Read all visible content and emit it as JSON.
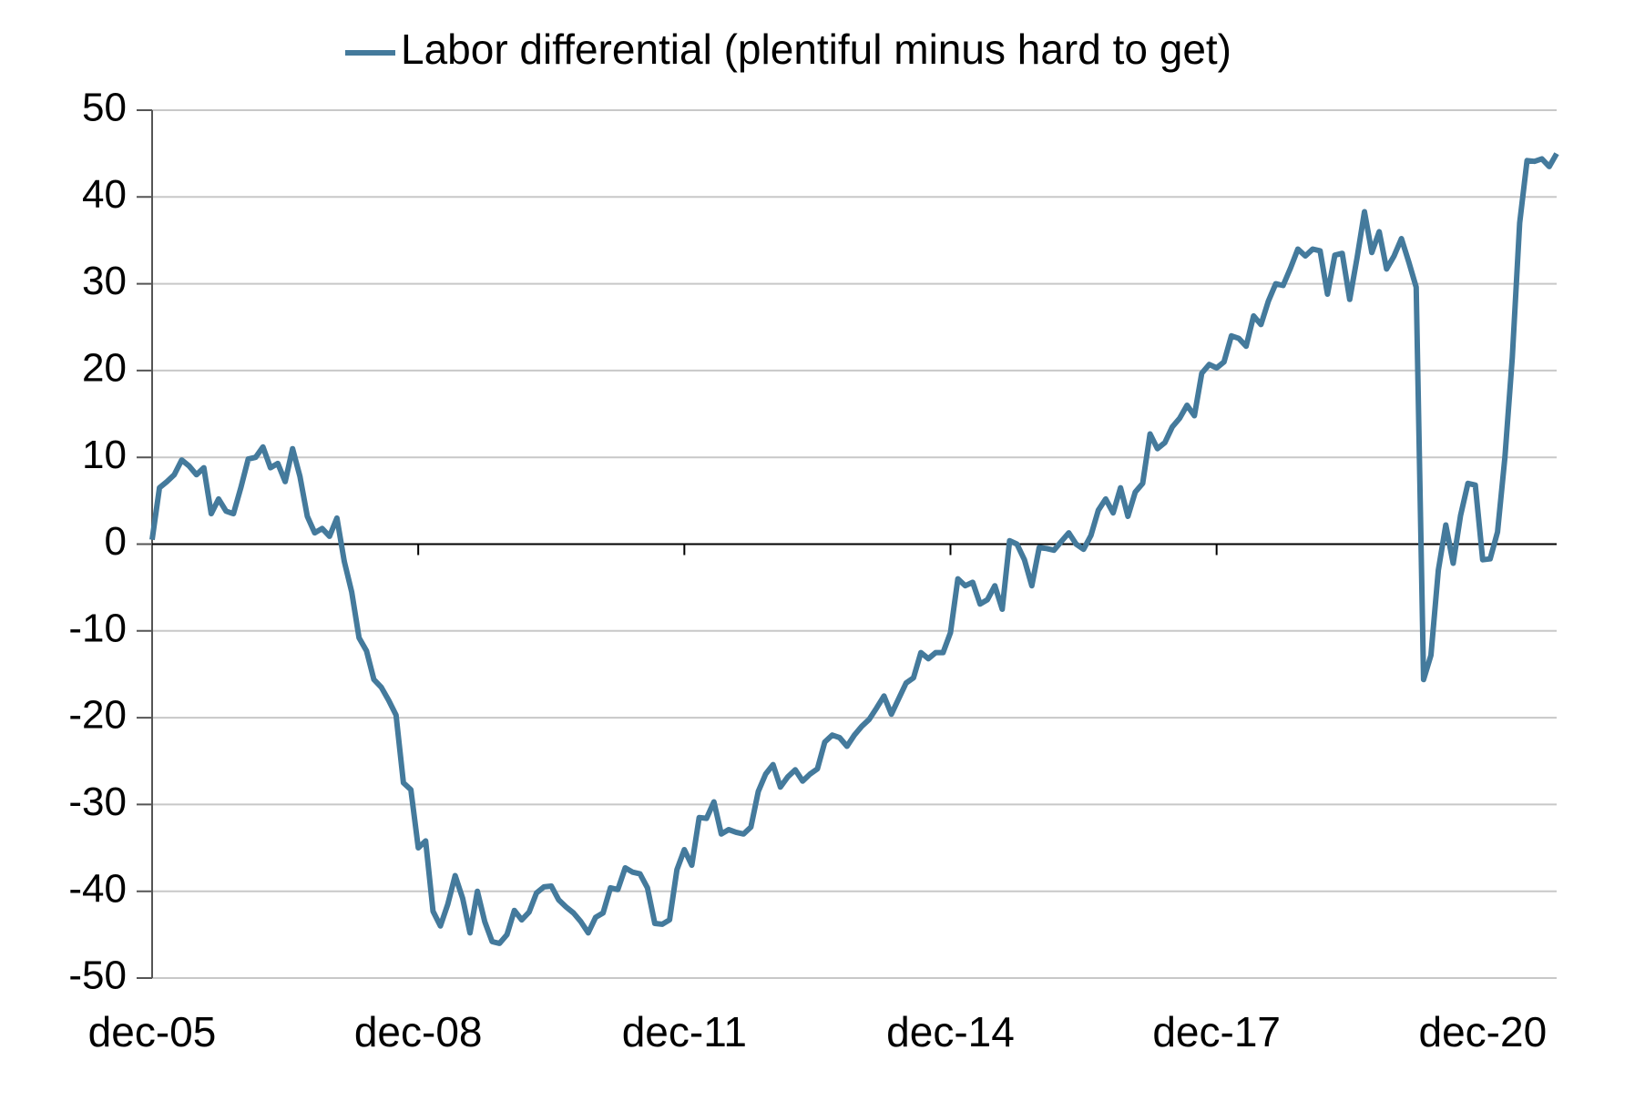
{
  "chart_data": {
    "type": "line",
    "legend": "top",
    "grid": true,
    "ylim": [
      -50,
      50
    ],
    "yticks": [
      50,
      40,
      30,
      20,
      10,
      0,
      -10,
      -20,
      -30,
      -40,
      -50
    ],
    "categories": [
      "dec-05",
      null,
      null,
      null,
      null,
      null,
      null,
      null,
      null,
      null,
      null,
      null,
      null,
      null,
      null,
      null,
      null,
      null,
      null,
      null,
      null,
      null,
      null,
      null,
      null,
      null,
      null,
      null,
      null,
      null,
      null,
      null,
      null,
      null,
      null,
      null,
      "dec-08",
      null,
      null,
      null,
      null,
      null,
      null,
      null,
      null,
      null,
      null,
      null,
      null,
      null,
      null,
      null,
      null,
      null,
      null,
      null,
      null,
      null,
      null,
      null,
      null,
      null,
      null,
      null,
      null,
      null,
      null,
      null,
      null,
      null,
      null,
      null,
      "dec-11",
      null,
      null,
      null,
      null,
      null,
      null,
      null,
      null,
      null,
      null,
      null,
      null,
      null,
      null,
      null,
      null,
      null,
      null,
      null,
      null,
      null,
      null,
      null,
      null,
      null,
      null,
      null,
      null,
      null,
      null,
      null,
      null,
      null,
      null,
      null,
      "dec-14",
      null,
      null,
      null,
      null,
      null,
      null,
      null,
      null,
      null,
      null,
      null,
      null,
      null,
      null,
      null,
      null,
      null,
      null,
      null,
      null,
      null,
      null,
      null,
      null,
      null,
      null,
      null,
      null,
      null,
      null,
      null,
      null,
      null,
      null,
      null,
      "dec-17",
      null,
      null,
      null,
      null,
      null,
      null,
      null,
      null,
      null,
      null,
      null,
      null,
      null,
      null,
      null,
      null,
      null,
      null,
      null,
      null,
      null,
      null,
      null,
      null,
      null,
      null,
      null,
      null,
      null,
      null,
      null,
      null,
      null,
      null,
      null,
      "dec-20",
      null,
      null,
      null,
      null,
      null,
      null,
      null,
      null,
      null,
      null
    ],
    "series": [
      {
        "name": "Labor differential (plentiful minus hard to get)",
        "color": "#447a9c",
        "values": [
          0.5,
          6.5,
          7.2,
          8,
          9.7,
          9,
          8,
          8.8,
          3.5,
          5.2,
          3.8,
          3.5,
          6.5,
          9.8,
          10,
          11.2,
          8.8,
          9.3,
          7.2,
          11,
          7.8,
          3.2,
          1.3,
          1.8,
          0.9,
          3,
          -2,
          -5.5,
          -10.8,
          -12.3,
          -15.6,
          -16.5,
          -18,
          -19.7,
          -27.5,
          -28.3,
          -35,
          -34.2,
          -42.3,
          -44,
          -41.5,
          -38.2,
          -40.8,
          -44.8,
          -40,
          -43.5,
          -45.8,
          -46,
          -45,
          -42.2,
          -43.3,
          -42.4,
          -40.2,
          -39.5,
          -39.4,
          -41,
          -41.8,
          -42.5,
          -43.5,
          -44.8,
          -43,
          -42.5,
          -39.6,
          -39.8,
          -37.3,
          -37.8,
          -38,
          -39.6,
          -43.7,
          -43.8,
          -43.3,
          -37.5,
          -35.2,
          -37,
          -31.5,
          -31.6,
          -29.7,
          -33.4,
          -32.9,
          -33.2,
          -33.4,
          -32.6,
          -28.5,
          -26.5,
          -25.4,
          -28,
          -26.8,
          -26,
          -27.3,
          -26.5,
          -25.9,
          -22.8,
          -22,
          -22.3,
          -23.3,
          -22,
          -21,
          -20.2,
          -18.9,
          -17.5,
          -19.6,
          -17.8,
          -16,
          -15.4,
          -12.5,
          -13.2,
          -12.5,
          -12.5,
          -10.2,
          -4,
          -4.8,
          -4.4,
          -6.9,
          -6.4,
          -4.8,
          -7.5,
          0.4,
          0,
          -1.8,
          -4.8,
          -0.4,
          -0.5,
          -0.7,
          0.3,
          1.3,
          0,
          -0.6,
          1,
          3.9,
          5.2,
          3.6,
          6.5,
          3.2,
          6,
          7,
          12.7,
          11,
          11.7,
          13.5,
          14.5,
          16,
          14.8,
          19.7,
          20.7,
          20.3,
          21,
          24,
          23.7,
          22.8,
          26.3,
          25.3,
          28,
          30,
          29.8,
          31.8,
          34,
          33.2,
          34,
          33.8,
          28.8,
          33.3,
          33.5,
          28.2,
          33,
          38.3,
          33.6,
          36,
          31.7,
          33.2,
          35.2,
          32.5,
          29.6,
          -15.6,
          -12.8,
          -3,
          2.2,
          -2.2,
          3.3,
          7,
          6.8,
          -1.8,
          -1.7,
          1.4,
          10,
          21.5,
          37,
          44.2,
          44.1,
          44.4,
          43.5,
          45
        ]
      }
    ]
  }
}
